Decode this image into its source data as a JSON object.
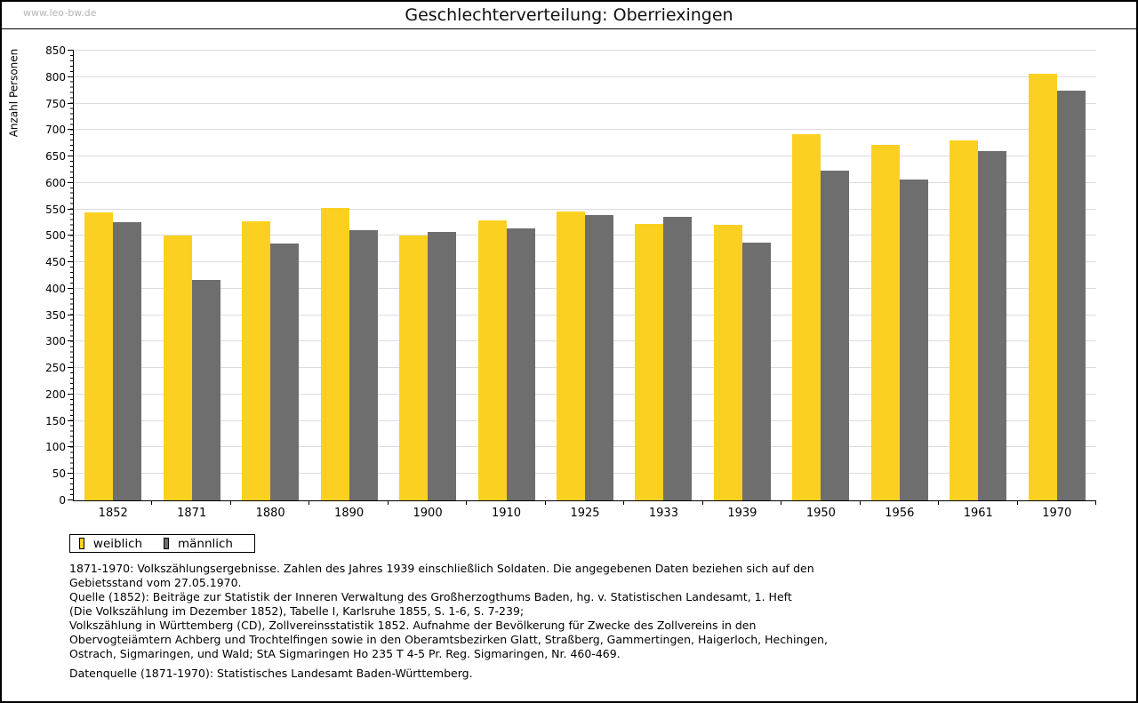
{
  "watermark": "www.leo-bw.de",
  "header": {
    "title": "Geschlechterverteilung: Oberriexingen"
  },
  "chart_data": {
    "type": "bar",
    "title": "Geschlechterverteilung: Oberriexingen",
    "xlabel": "",
    "ylabel": "Anzahl Personen",
    "ylim": [
      0,
      850
    ],
    "ytick_step": 50,
    "ytick_minor_step": 10,
    "grid": true,
    "legend_position": "bottom-left",
    "categories": [
      "1852",
      "1871",
      "1880",
      "1890",
      "1900",
      "1910",
      "1925",
      "1933",
      "1939",
      "1950",
      "1956",
      "1961",
      "1970"
    ],
    "series": [
      {
        "name": "weiblich",
        "color": "#FCD020",
        "values": [
          545,
          500,
          527,
          553,
          500,
          530,
          546,
          523,
          521,
          692,
          672,
          681,
          807
        ]
      },
      {
        "name": "männlich",
        "color": "#6E6E6E",
        "values": [
          525,
          417,
          486,
          510,
          508,
          514,
          540,
          536,
          487,
          624,
          607,
          661,
          774
        ]
      }
    ]
  },
  "footer": {
    "lines": [
      "1871-1970: Volkszählungsergebnisse. Zahlen des Jahres 1939 einschließlich Soldaten. Die angegebenen Daten beziehen sich auf den",
      "Gebietsstand vom 27.05.1970.",
      "Quelle (1852): Beiträge zur Statistik der Inneren Verwaltung des Großherzogthums Baden, hg. v. Statistischen Landesamt, 1. Heft",
      "(Die Volkszählung im Dezember 1852), Tabelle I, Karlsruhe 1855, S. 1-6, S. 7-239;",
      "Volkszählung in Württemberg (CD), Zollvereinsstatistik 1852. Aufnahme der Bevölkerung für Zwecke des Zollvereins in den",
      "Obervogteiämtern Achberg und Trochtelfingen sowie in den Oberamtsbezirken Glatt, Straßberg, Gammertingen, Haigerloch, Hechingen,",
      "Ostrach, Sigmaringen, und Wald; StA Sigmaringen Ho 235 T 4-5 Pr. Reg. Sigmaringen, Nr. 460-469.",
      "",
      "Datenquelle (1871-1970): Statistisches Landesamt Baden-Württemberg."
    ]
  }
}
